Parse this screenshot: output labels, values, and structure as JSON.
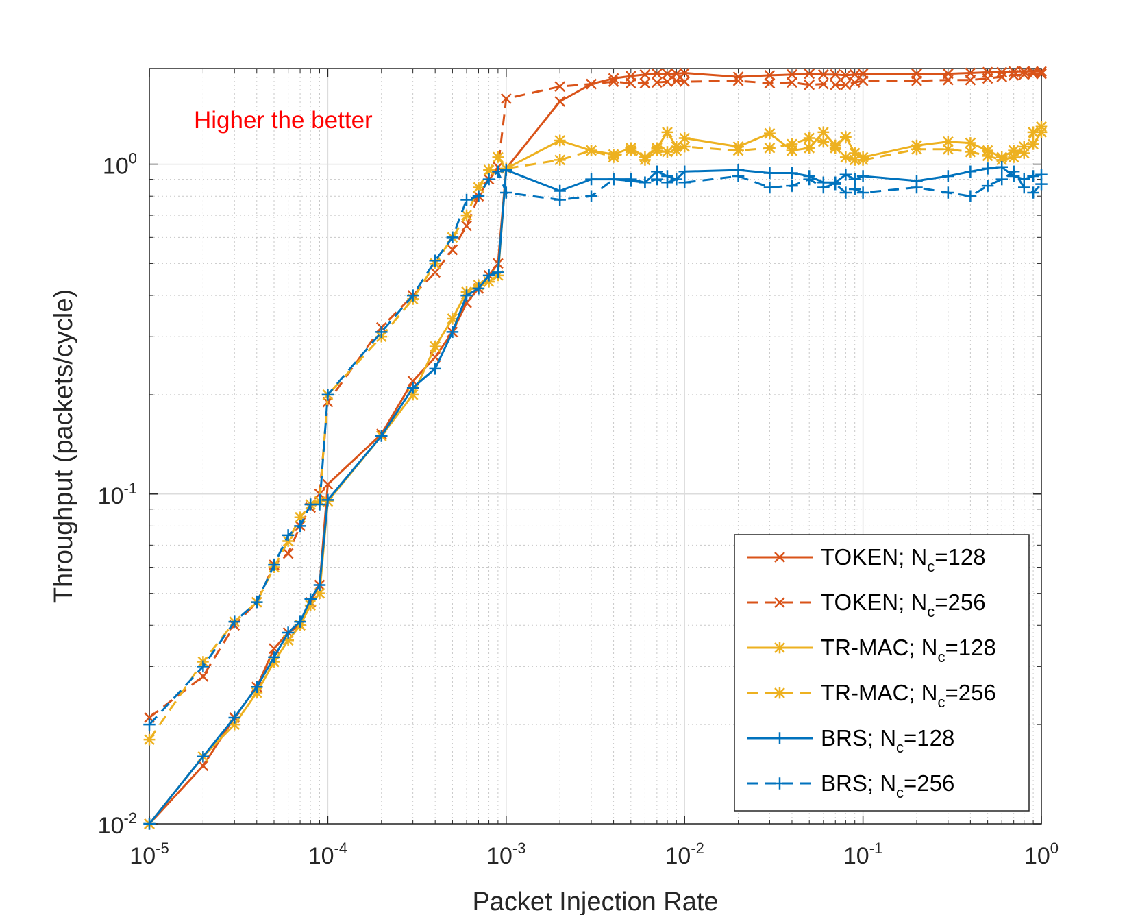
{
  "chart_data": {
    "type": "line",
    "title": "",
    "xlabel": "Packet Injection Rate",
    "ylabel": "Throughput (packets/cycle)",
    "xscale": "log",
    "yscale": "log",
    "xlim": [
      1e-05,
      1
    ],
    "ylim": [
      0.01,
      1.95
    ],
    "grid": true,
    "legend_position": "bottom-right",
    "annotation": "Higher the better",
    "x_ticks": [
      {
        "base": "10",
        "exp": "-5"
      },
      {
        "base": "10",
        "exp": "-4"
      },
      {
        "base": "10",
        "exp": "-3"
      },
      {
        "base": "10",
        "exp": "-2"
      },
      {
        "base": "10",
        "exp": "-1"
      },
      {
        "base": "10",
        "exp": "0"
      }
    ],
    "y_ticks": [
      {
        "base": "10",
        "exp": "-2"
      },
      {
        "base": "10",
        "exp": "-1"
      },
      {
        "base": "10",
        "exp": "0"
      }
    ],
    "series": [
      {
        "name": "TOKEN; N_c=128",
        "legend_prefix": "TOKEN; N",
        "legend_sub": "c",
        "legend_suffix": "=128",
        "color": "#d95319",
        "dash": "solid",
        "marker": "x",
        "x": [
          1e-05,
          2e-05,
          3e-05,
          4e-05,
          5e-05,
          6e-05,
          7e-05,
          8e-05,
          9e-05,
          0.0001,
          0.0002,
          0.0003,
          0.0004,
          0.0005,
          0.0006,
          0.0007,
          0.0008,
          0.0009,
          0.001,
          0.002,
          0.003,
          0.004,
          0.005,
          0.006,
          0.007,
          0.008,
          0.009,
          0.01,
          0.02,
          0.03,
          0.04,
          0.05,
          0.06,
          0.07,
          0.08,
          0.09,
          0.1,
          0.2,
          0.3,
          0.4,
          0.5,
          0.6,
          0.7,
          0.8,
          0.9,
          1
        ],
        "y": [
          0.01,
          0.015,
          0.021,
          0.026,
          0.034,
          0.038,
          0.04,
          0.047,
          0.053,
          0.107,
          0.152,
          0.22,
          0.26,
          0.31,
          0.38,
          0.42,
          0.46,
          0.5,
          0.97,
          1.55,
          1.75,
          1.82,
          1.85,
          1.87,
          1.88,
          1.88,
          1.88,
          1.89,
          1.84,
          1.86,
          1.87,
          1.88,
          1.87,
          1.87,
          1.86,
          1.87,
          1.88,
          1.88,
          1.88,
          1.89,
          1.9,
          1.9,
          1.91,
          1.91,
          1.91,
          1.91
        ]
      },
      {
        "name": "TOKEN; N_c=256",
        "legend_prefix": "TOKEN; N",
        "legend_sub": "c",
        "legend_suffix": "=256",
        "color": "#d95319",
        "dash": "dashed",
        "marker": "x",
        "x": [
          1e-05,
          2e-05,
          3e-05,
          4e-05,
          5e-05,
          6e-05,
          7e-05,
          8e-05,
          9e-05,
          0.0001,
          0.0002,
          0.0003,
          0.0004,
          0.0005,
          0.0006,
          0.0007,
          0.0008,
          0.0009,
          0.001,
          0.002,
          0.003,
          0.004,
          0.005,
          0.006,
          0.007,
          0.008,
          0.009,
          0.01,
          0.02,
          0.03,
          0.04,
          0.05,
          0.06,
          0.07,
          0.08,
          0.09,
          0.1,
          0.2,
          0.3,
          0.4,
          0.5,
          0.6,
          0.7,
          0.8,
          0.9,
          1
        ],
        "y": [
          0.021,
          0.028,
          0.04,
          0.047,
          0.061,
          0.066,
          0.08,
          0.091,
          0.1,
          0.19,
          0.32,
          0.4,
          0.47,
          0.55,
          0.65,
          0.8,
          0.9,
          0.98,
          1.58,
          1.72,
          1.75,
          1.78,
          1.76,
          1.76,
          1.77,
          1.78,
          1.79,
          1.78,
          1.79,
          1.76,
          1.77,
          1.74,
          1.75,
          1.74,
          1.74,
          1.77,
          1.79,
          1.79,
          1.8,
          1.8,
          1.82,
          1.84,
          1.86,
          1.87,
          1.88,
          1.88
        ]
      },
      {
        "name": "TR-MAC; N_c=128",
        "legend_prefix": "TR-MAC; N",
        "legend_sub": "c",
        "legend_suffix": "=128",
        "color": "#edb120",
        "dash": "solid",
        "marker": "asterisk",
        "x": [
          1e-05,
          2e-05,
          3e-05,
          4e-05,
          5e-05,
          6e-05,
          7e-05,
          8e-05,
          9e-05,
          0.0001,
          0.0002,
          0.0003,
          0.0004,
          0.0005,
          0.0006,
          0.0007,
          0.0008,
          0.0009,
          0.001,
          0.002,
          0.003,
          0.004,
          0.005,
          0.006,
          0.007,
          0.008,
          0.009,
          0.01,
          0.02,
          0.03,
          0.04,
          0.05,
          0.06,
          0.07,
          0.08,
          0.09,
          0.1,
          0.2,
          0.3,
          0.4,
          0.5,
          0.6,
          0.7,
          0.8,
          0.9,
          1
        ],
        "y": [
          0.01,
          0.016,
          0.02,
          0.025,
          0.031,
          0.036,
          0.04,
          0.046,
          0.05,
          0.095,
          0.15,
          0.2,
          0.28,
          0.34,
          0.41,
          0.43,
          0.44,
          0.46,
          0.97,
          1.18,
          1.1,
          1.07,
          1.12,
          1.05,
          1.12,
          1.25,
          1.13,
          1.2,
          1.13,
          1.24,
          1.1,
          1.12,
          1.25,
          1.14,
          1.21,
          1.08,
          1.05,
          1.14,
          1.17,
          1.16,
          1.1,
          1.05,
          1.1,
          1.08,
          1.15,
          1.25
        ]
      },
      {
        "name": "TR-MAC; N_c=256",
        "legend_prefix": "TR-MAC; N",
        "legend_sub": "c",
        "legend_suffix": "=256",
        "color": "#edb120",
        "dash": "dashed",
        "marker": "asterisk",
        "x": [
          1e-05,
          2e-05,
          3e-05,
          4e-05,
          5e-05,
          6e-05,
          7e-05,
          8e-05,
          9e-05,
          0.0001,
          0.0002,
          0.0003,
          0.0004,
          0.0005,
          0.0006,
          0.0007,
          0.0008,
          0.0009,
          0.001,
          0.002,
          0.003,
          0.004,
          0.005,
          0.006,
          0.007,
          0.008,
          0.009,
          0.01,
          0.02,
          0.03,
          0.04,
          0.05,
          0.06,
          0.07,
          0.08,
          0.09,
          0.1,
          0.2,
          0.3,
          0.4,
          0.5,
          0.6,
          0.7,
          0.8,
          0.9,
          1
        ],
        "y": [
          0.018,
          0.031,
          0.041,
          0.047,
          0.06,
          0.072,
          0.085,
          0.093,
          0.095,
          0.2,
          0.3,
          0.39,
          0.5,
          0.6,
          0.7,
          0.85,
          0.96,
          1.05,
          0.97,
          1.03,
          1.1,
          1.05,
          1.1,
          1.03,
          1.1,
          1.09,
          1.1,
          1.13,
          1.1,
          1.12,
          1.15,
          1.2,
          1.17,
          1.12,
          1.05,
          1.03,
          1.03,
          1.11,
          1.11,
          1.09,
          1.06,
          1.03,
          1.05,
          1.13,
          1.25,
          1.3
        ]
      },
      {
        "name": "BRS; N_c=128",
        "legend_prefix": "BRS; N",
        "legend_sub": "c",
        "legend_suffix": "=128",
        "color": "#0072bd",
        "dash": "solid",
        "marker": "plus",
        "x": [
          1e-05,
          2e-05,
          3e-05,
          4e-05,
          5e-05,
          6e-05,
          7e-05,
          8e-05,
          9e-05,
          0.0001,
          0.0002,
          0.0003,
          0.0004,
          0.0005,
          0.0006,
          0.0007,
          0.0008,
          0.0009,
          0.001,
          0.002,
          0.003,
          0.004,
          0.005,
          0.006,
          0.007,
          0.008,
          0.009,
          0.01,
          0.02,
          0.03,
          0.04,
          0.05,
          0.06,
          0.07,
          0.08,
          0.09,
          0.1,
          0.2,
          0.3,
          0.4,
          0.5,
          0.6,
          0.7,
          0.8,
          0.9,
          1
        ],
        "y": [
          0.01,
          0.016,
          0.021,
          0.026,
          0.032,
          0.038,
          0.041,
          0.048,
          0.053,
          0.096,
          0.15,
          0.21,
          0.24,
          0.31,
          0.4,
          0.42,
          0.46,
          0.47,
          0.96,
          0.83,
          0.9,
          0.9,
          0.9,
          0.88,
          0.95,
          0.92,
          0.9,
          0.95,
          0.96,
          0.94,
          0.94,
          0.92,
          0.88,
          0.88,
          0.93,
          0.9,
          0.92,
          0.89,
          0.92,
          0.95,
          0.97,
          0.98,
          0.92,
          0.9,
          0.92,
          0.93
        ]
      },
      {
        "name": "BRS; N_c=256",
        "legend_prefix": "BRS; N",
        "legend_sub": "c",
        "legend_suffix": "=256",
        "color": "#0072bd",
        "dash": "dashed",
        "marker": "plus",
        "x": [
          1e-05,
          2e-05,
          3e-05,
          4e-05,
          5e-05,
          6e-05,
          7e-05,
          8e-05,
          9e-05,
          0.0001,
          0.0002,
          0.0003,
          0.0004,
          0.0005,
          0.0006,
          0.0007,
          0.0008,
          0.0009,
          0.001,
          0.002,
          0.003,
          0.004,
          0.005,
          0.006,
          0.007,
          0.008,
          0.009,
          0.01,
          0.02,
          0.03,
          0.04,
          0.05,
          0.06,
          0.07,
          0.08,
          0.09,
          0.1,
          0.2,
          0.3,
          0.4,
          0.5,
          0.6,
          0.7,
          0.8,
          0.9,
          1
        ],
        "y": [
          0.02,
          0.03,
          0.041,
          0.047,
          0.061,
          0.075,
          0.08,
          0.093,
          0.093,
          0.2,
          0.31,
          0.4,
          0.51,
          0.6,
          0.78,
          0.8,
          0.9,
          0.95,
          0.82,
          0.78,
          0.8,
          0.9,
          0.89,
          0.88,
          0.9,
          0.88,
          0.9,
          0.88,
          0.92,
          0.85,
          0.86,
          0.9,
          0.85,
          0.87,
          0.82,
          0.84,
          0.82,
          0.85,
          0.82,
          0.8,
          0.86,
          0.9,
          0.95,
          0.85,
          0.82,
          0.87
        ]
      }
    ]
  }
}
